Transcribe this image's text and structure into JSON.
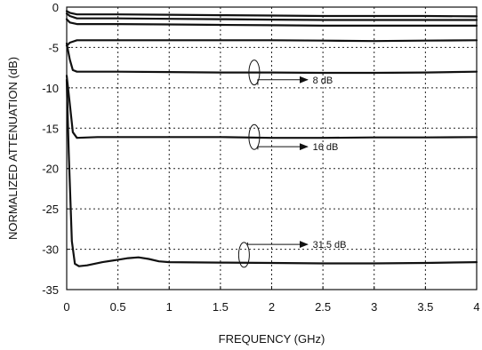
{
  "chart_data": {
    "type": "line",
    "title": "",
    "xlabel": "FREQUENCY (GHz)",
    "ylabel": "NORMALIZED ATTENUATION (dB)",
    "xlim": [
      0,
      4
    ],
    "ylim": [
      -35,
      0
    ],
    "grid": true,
    "grid_style": "dotted",
    "xticks": [
      0,
      0.5,
      1,
      1.5,
      2,
      2.5,
      3,
      3.5,
      4
    ],
    "xtick_labels": [
      "0",
      "0.5",
      "1",
      "1.5",
      "2",
      "2.5",
      "3",
      "3.5",
      "4"
    ],
    "yticks": [
      0,
      -5,
      -10,
      -15,
      -20,
      -25,
      -30,
      -35
    ],
    "ytick_labels": [
      "0",
      "-5",
      "-10",
      "-15",
      "-20",
      "-25",
      "-30",
      "-35"
    ],
    "series": [
      {
        "x": [
          0,
          0.03,
          0.1,
          0.5,
          1,
          1.5,
          2,
          2.5,
          3,
          3.5,
          4
        ],
        "values": [
          -0.5,
          -0.7,
          -0.9,
          -0.9,
          -0.95,
          -1.0,
          -1.05,
          -1.1,
          -1.1,
          -1.1,
          -1.15
        ]
      },
      {
        "x": [
          0,
          0.03,
          0.1,
          0.5,
          1,
          1.5,
          2,
          2.5,
          3,
          3.5,
          4
        ],
        "values": [
          -0.8,
          -1.1,
          -1.4,
          -1.4,
          -1.45,
          -1.5,
          -1.55,
          -1.6,
          -1.6,
          -1.6,
          -1.6
        ]
      },
      {
        "x": [
          0,
          0.03,
          0.1,
          0.5,
          1,
          1.5,
          2,
          2.5,
          3,
          3.5,
          4
        ],
        "values": [
          -1.5,
          -1.9,
          -2.1,
          -2.1,
          -2.15,
          -2.2,
          -2.25,
          -2.3,
          -2.3,
          -2.3,
          -2.3
        ]
      },
      {
        "x": [
          0,
          0.03,
          0.1,
          0.5,
          1,
          1.5,
          2,
          2.5,
          3,
          3.5,
          4
        ],
        "values": [
          -4.8,
          -4.4,
          -4.1,
          -4.1,
          -4.1,
          -4.1,
          -4.1,
          -4.15,
          -4.2,
          -4.15,
          -4.1
        ]
      },
      {
        "x": [
          0,
          0.03,
          0.06,
          0.1,
          0.3,
          0.5,
          1,
          1.5,
          2,
          2.5,
          3,
          3.5,
          4
        ],
        "values": [
          -4.5,
          -6.5,
          -7.8,
          -8.0,
          -8.0,
          -8.0,
          -8.05,
          -8.1,
          -8.1,
          -8.15,
          -8.15,
          -8.1,
          -8.0
        ]
      },
      {
        "x": [
          0,
          0.03,
          0.06,
          0.1,
          0.3,
          0.5,
          1,
          1.5,
          2,
          2.5,
          3,
          3.5,
          4
        ],
        "values": [
          -8.5,
          -12.0,
          -15.5,
          -16.2,
          -16.1,
          -16.1,
          -16.1,
          -16.1,
          -16.2,
          -16.2,
          -16.15,
          -16.15,
          -16.1
        ]
      },
      {
        "x": [
          0,
          0.02,
          0.05,
          0.08,
          0.12,
          0.2,
          0.35,
          0.5,
          0.6,
          0.7,
          0.8,
          0.9,
          1,
          1.5,
          2,
          2.5,
          3,
          3.5,
          4
        ],
        "values": [
          -9.0,
          -18.0,
          -29.0,
          -31.8,
          -32.1,
          -32.0,
          -31.6,
          -31.3,
          -31.1,
          -31.0,
          -31.2,
          -31.5,
          -31.6,
          -31.65,
          -31.7,
          -31.75,
          -31.75,
          -31.7,
          -31.6
        ]
      }
    ],
    "annotations": [
      {
        "label": "8 dB",
        "ellipse_x": 1.83,
        "ellipse_y": -8.1,
        "arrow_to": [
          2.35,
          -9.0
        ],
        "text_x": 2.4,
        "text_y": -9.0
      },
      {
        "label": "16 dB",
        "ellipse_x": 1.83,
        "ellipse_y": -16.1,
        "arrow_to": [
          2.35,
          -17.3
        ],
        "text_x": 2.4,
        "text_y": -17.3
      },
      {
        "label": "31.5 dB",
        "ellipse_x": 1.73,
        "ellipse_y": -30.7,
        "arrow_to": [
          2.35,
          -29.4
        ],
        "text_x": 2.4,
        "text_y": -29.4
      }
    ],
    "line_color": "#111111",
    "grid_color": "#222222"
  }
}
